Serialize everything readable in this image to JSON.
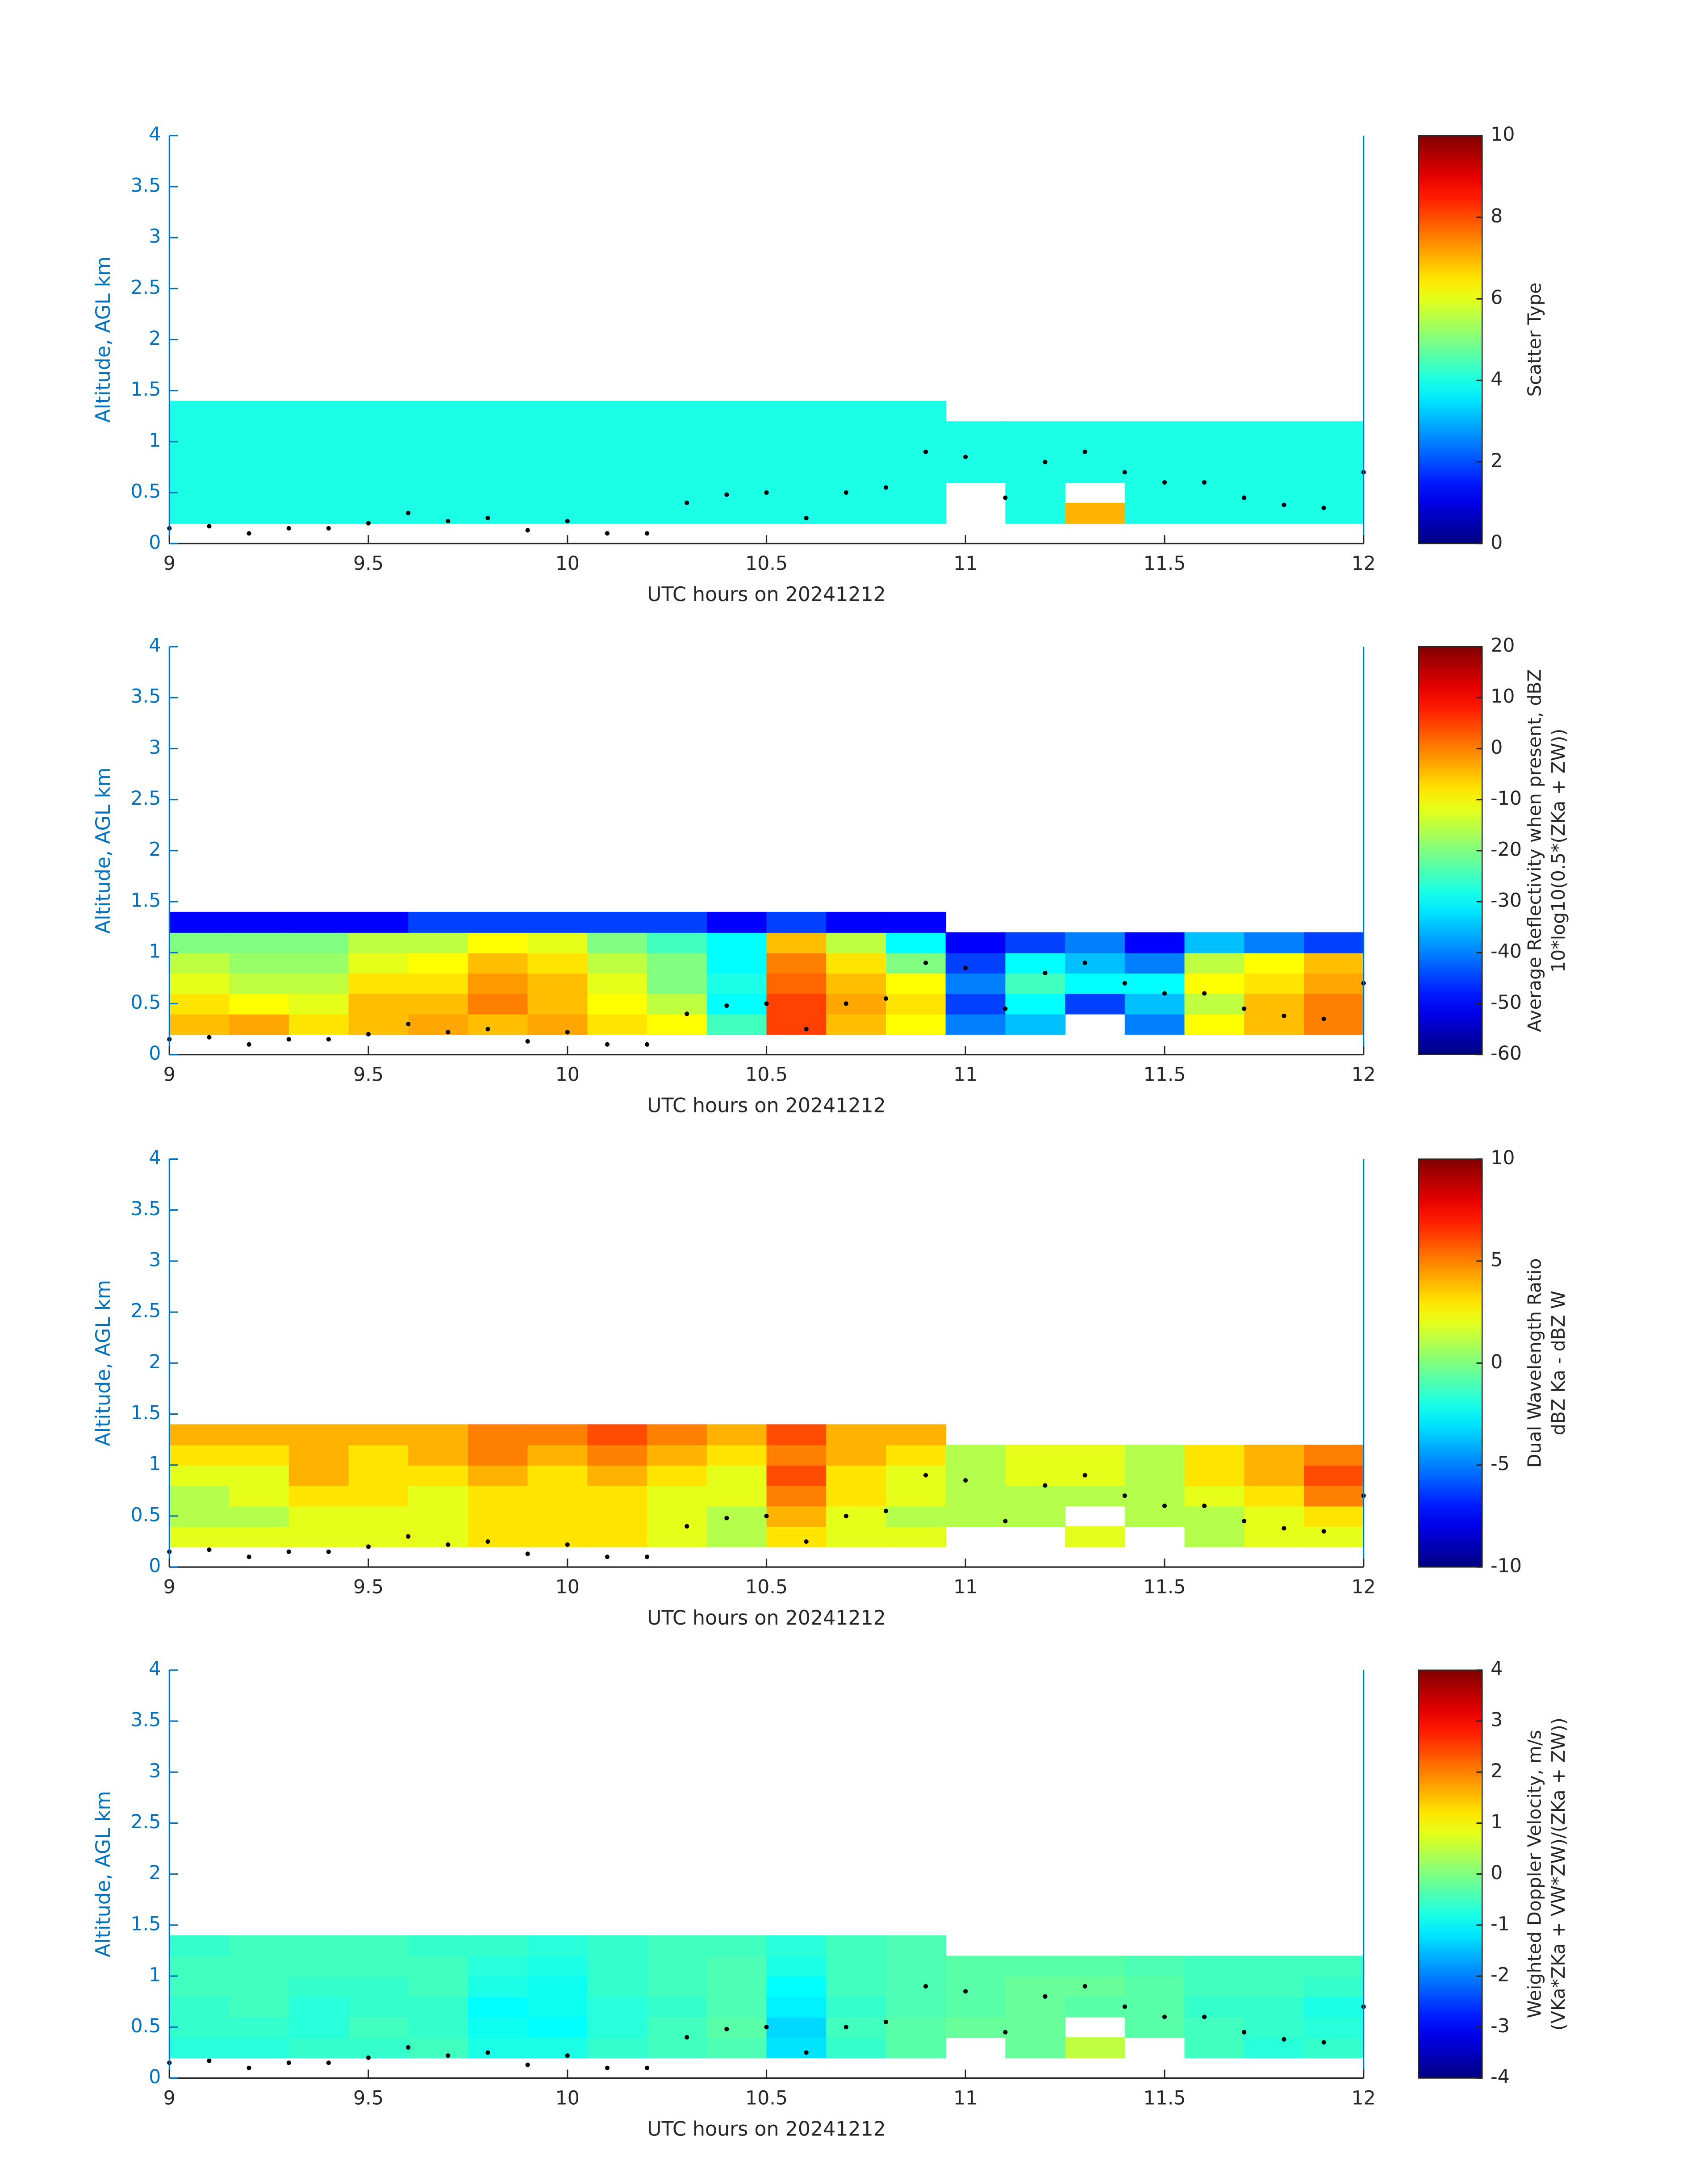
{
  "chart_data": [
    {
      "type": "heatmap",
      "xlabel": "UTC hours on 20241212",
      "ylabel": "Altitude, AGL km",
      "xlim": [
        9,
        12
      ],
      "xticks": [
        9,
        9.5,
        10,
        10.5,
        11,
        11.5,
        12
      ],
      "ylim": [
        0,
        4
      ],
      "yticks": [
        0,
        0.5,
        1,
        1.5,
        2,
        2.5,
        3,
        3.5,
        4
      ],
      "axis_color": "#0072bd",
      "colormap": "jet",
      "clim": [
        0,
        10
      ],
      "cticks": [
        0,
        2,
        4,
        6,
        8,
        10
      ],
      "colorbar_label": [
        "Scatter Type"
      ],
      "x_edges": [
        9,
        9.15,
        9.3,
        9.45,
        9.6,
        9.75,
        9.9,
        10.05,
        10.2,
        10.35,
        10.5,
        10.65,
        10.8,
        10.95,
        11.1,
        11.25,
        11.4,
        11.55,
        11.7,
        11.85,
        12
      ],
      "y_edges": [
        0.2,
        0.4,
        0.6,
        0.8,
        1.0,
        1.2,
        1.4
      ],
      "z": [
        [
          4,
          4,
          4,
          4,
          4,
          4,
          4,
          4,
          4,
          4,
          4,
          4,
          4,
          null,
          4,
          7,
          4,
          4,
          4,
          4
        ],
        [
          4,
          4,
          4,
          4,
          4,
          4,
          4,
          4,
          4,
          4,
          4,
          4,
          4,
          null,
          4,
          null,
          4,
          4,
          4,
          4
        ],
        [
          4,
          4,
          4,
          4,
          4,
          4,
          4,
          4,
          4,
          4,
          4,
          4,
          4,
          4,
          4,
          4,
          4,
          4,
          4,
          4
        ],
        [
          4,
          4,
          4,
          4,
          4,
          4,
          4,
          4,
          4,
          4,
          4,
          4,
          4,
          4,
          4,
          4,
          4,
          4,
          4,
          4
        ],
        [
          4,
          4,
          4,
          4,
          4,
          4,
          4,
          4,
          4,
          4,
          4,
          4,
          4,
          4,
          4,
          4,
          4,
          4,
          4,
          4
        ],
        [
          4,
          4,
          4,
          4,
          4,
          4,
          4,
          4,
          4,
          4,
          4,
          4,
          4,
          null,
          null,
          null,
          null,
          null,
          null,
          null
        ]
      ],
      "points": {
        "color": "#000000",
        "x": [
          9.0,
          9.1,
          9.2,
          9.3,
          9.4,
          9.5,
          9.6,
          9.7,
          9.8,
          9.9,
          10.0,
          10.1,
          10.2,
          10.3,
          10.4,
          10.5,
          10.6,
          10.7,
          10.8,
          10.9,
          11.0,
          11.1,
          11.2,
          11.3,
          11.4,
          11.5,
          11.6,
          11.7,
          11.8,
          11.9,
          12.0
        ],
        "y": [
          0.15,
          0.17,
          0.1,
          0.15,
          0.15,
          0.2,
          0.3,
          0.22,
          0.25,
          0.13,
          0.22,
          0.1,
          0.1,
          0.4,
          0.48,
          0.5,
          0.25,
          0.5,
          0.55,
          0.9,
          0.85,
          0.45,
          0.8,
          0.9,
          0.7,
          0.6,
          0.6,
          0.45,
          0.38,
          0.35,
          0.7
        ]
      }
    },
    {
      "type": "heatmap",
      "xlabel": "UTC hours on 20241212",
      "ylabel": "Altitude, AGL km",
      "xlim": [
        9,
        12
      ],
      "xticks": [
        9,
        9.5,
        10,
        10.5,
        11,
        11.5,
        12
      ],
      "ylim": [
        0,
        4
      ],
      "yticks": [
        0,
        0.5,
        1,
        1.5,
        2,
        2.5,
        3,
        3.5,
        4
      ],
      "axis_color": "#0072bd",
      "colormap": "jet",
      "clim": [
        -60,
        20
      ],
      "cticks": [
        -60,
        -50,
        -40,
        -30,
        -20,
        -10,
        0,
        10,
        20
      ],
      "colorbar_label": [
        "Average Reflectivity when present, dBZ",
        "10*log10(0.5*(ZKa + ZW))"
      ],
      "x_edges": [
        9,
        9.15,
        9.3,
        9.45,
        9.6,
        9.75,
        9.9,
        10.05,
        10.2,
        10.35,
        10.5,
        10.65,
        10.8,
        10.95,
        11.1,
        11.25,
        11.4,
        11.55,
        11.7,
        11.85,
        12
      ],
      "y_edges": [
        0.2,
        0.4,
        0.6,
        0.8,
        1.0,
        1.2,
        1.4
      ],
      "z": [
        [
          -5,
          -3,
          -8,
          -5,
          -3,
          -5,
          -3,
          -8,
          -10,
          -25,
          5,
          -5,
          -10,
          -40,
          -35,
          null,
          -40,
          -10,
          -5,
          0
        ],
        [
          -8,
          -10,
          -12,
          -5,
          -5,
          0,
          -5,
          -10,
          -15,
          -30,
          5,
          -3,
          -8,
          -45,
          -30,
          -45,
          -35,
          -15,
          -5,
          0
        ],
        [
          -12,
          -15,
          -15,
          -8,
          -8,
          -2,
          -5,
          -12,
          -20,
          -28,
          2,
          -5,
          -10,
          -40,
          -25,
          -30,
          -30,
          -10,
          -8,
          -3
        ],
        [
          -15,
          -18,
          -18,
          -12,
          -10,
          -5,
          -8,
          -15,
          -20,
          -30,
          0,
          -8,
          -20,
          -45,
          -30,
          -35,
          -40,
          -15,
          -10,
          -5
        ],
        [
          -20,
          -20,
          -20,
          -15,
          -15,
          -10,
          -12,
          -20,
          -25,
          -30,
          -5,
          -15,
          -30,
          -50,
          -45,
          -40,
          -50,
          -35,
          -40,
          -45
        ],
        [
          -50,
          -50,
          -50,
          -50,
          -45,
          -45,
          -45,
          -45,
          -45,
          -50,
          -45,
          -50,
          -50,
          null,
          null,
          null,
          null,
          null,
          null,
          null
        ]
      ],
      "points": {
        "color": "#000000",
        "x": [
          9.0,
          9.1,
          9.2,
          9.3,
          9.4,
          9.5,
          9.6,
          9.7,
          9.8,
          9.9,
          10.0,
          10.1,
          10.2,
          10.3,
          10.4,
          10.5,
          10.6,
          10.7,
          10.8,
          10.9,
          11.0,
          11.1,
          11.2,
          11.3,
          11.4,
          11.5,
          11.6,
          11.7,
          11.8,
          11.9,
          12.0
        ],
        "y": [
          0.15,
          0.17,
          0.1,
          0.15,
          0.15,
          0.2,
          0.3,
          0.22,
          0.25,
          0.13,
          0.22,
          0.1,
          0.1,
          0.4,
          0.48,
          0.5,
          0.25,
          0.5,
          0.55,
          0.9,
          0.85,
          0.45,
          0.8,
          0.9,
          0.7,
          0.6,
          0.6,
          0.45,
          0.38,
          0.35,
          0.7
        ]
      }
    },
    {
      "type": "heatmap",
      "xlabel": "UTC hours on 20241212",
      "ylabel": "Altitude, AGL km",
      "xlim": [
        9,
        12
      ],
      "xticks": [
        9,
        9.5,
        10,
        10.5,
        11,
        11.5,
        12
      ],
      "ylim": [
        0,
        4
      ],
      "yticks": [
        0,
        0.5,
        1,
        1.5,
        2,
        2.5,
        3,
        3.5,
        4
      ],
      "axis_color": "#0072bd",
      "colormap": "jet",
      "clim": [
        -10,
        10
      ],
      "cticks": [
        -10,
        -5,
        0,
        5,
        10
      ],
      "colorbar_label": [
        "Dual Wavelength Ratio",
        "dBZ Ka - dBZ W"
      ],
      "x_edges": [
        9,
        9.15,
        9.3,
        9.45,
        9.6,
        9.75,
        9.9,
        10.05,
        10.2,
        10.35,
        10.5,
        10.65,
        10.8,
        10.95,
        11.1,
        11.25,
        11.4,
        11.55,
        11.7,
        11.85,
        12
      ],
      "y_edges": [
        0.2,
        0.4,
        0.6,
        0.8,
        1.0,
        1.2,
        1.4
      ],
      "z": [
        [
          2,
          2,
          2,
          2,
          2,
          3,
          3,
          3,
          2,
          1,
          3,
          2,
          2,
          null,
          null,
          2,
          null,
          1,
          2,
          2
        ],
        [
          1,
          1,
          2,
          2,
          2,
          3,
          3,
          3,
          2,
          1,
          4,
          2,
          1,
          1,
          1,
          null,
          1,
          1,
          2,
          3
        ],
        [
          1,
          2,
          3,
          3,
          2,
          3,
          3,
          3,
          2,
          2,
          5,
          3,
          2,
          1,
          1,
          1,
          1,
          2,
          3,
          5
        ],
        [
          2,
          2,
          4,
          3,
          3,
          4,
          3,
          4,
          3,
          2,
          6,
          3,
          2,
          1,
          2,
          2,
          1,
          3,
          4,
          6
        ],
        [
          3,
          3,
          4,
          3,
          4,
          5,
          4,
          5,
          4,
          3,
          5,
          4,
          3,
          1,
          2,
          2,
          1,
          3,
          4,
          5
        ],
        [
          4,
          4,
          4,
          4,
          4,
          5,
          5,
          6,
          5,
          4,
          6,
          4,
          4,
          null,
          null,
          null,
          null,
          null,
          null,
          null
        ]
      ],
      "points": {
        "color": "#000000",
        "x": [
          9.0,
          9.1,
          9.2,
          9.3,
          9.4,
          9.5,
          9.6,
          9.7,
          9.8,
          9.9,
          10.0,
          10.1,
          10.2,
          10.3,
          10.4,
          10.5,
          10.6,
          10.7,
          10.8,
          10.9,
          11.0,
          11.1,
          11.2,
          11.3,
          11.4,
          11.5,
          11.6,
          11.7,
          11.8,
          11.9,
          12.0
        ],
        "y": [
          0.15,
          0.17,
          0.1,
          0.15,
          0.15,
          0.2,
          0.3,
          0.22,
          0.25,
          0.13,
          0.22,
          0.1,
          0.1,
          0.4,
          0.48,
          0.5,
          0.25,
          0.5,
          0.55,
          0.9,
          0.85,
          0.45,
          0.8,
          0.9,
          0.7,
          0.6,
          0.6,
          0.45,
          0.38,
          0.35,
          0.7
        ]
      }
    },
    {
      "type": "heatmap",
      "xlabel": "UTC hours on 20241212",
      "ylabel": "Altitude, AGL km",
      "xlim": [
        9,
        12
      ],
      "xticks": [
        9,
        9.5,
        10,
        10.5,
        11,
        11.5,
        12
      ],
      "ylim": [
        0,
        4
      ],
      "yticks": [
        0,
        0.5,
        1,
        1.5,
        2,
        2.5,
        3,
        3.5,
        4
      ],
      "axis_color": "#0072bd",
      "colormap": "jet",
      "clim": [
        -4,
        4
      ],
      "cticks": [
        -4,
        -3,
        -2,
        -1,
        0,
        1,
        2,
        3,
        4
      ],
      "colorbar_label": [
        "Weighted Doppler Velocity, m/s",
        "(VKa*ZKa + VW*ZW)/(ZKa + ZW))"
      ],
      "x_edges": [
        9,
        9.15,
        9.3,
        9.45,
        9.6,
        9.75,
        9.9,
        10.05,
        10.2,
        10.35,
        10.5,
        10.65,
        10.8,
        10.95,
        11.1,
        11.25,
        11.4,
        11.55,
        11.7,
        11.85,
        12
      ],
      "y_edges": [
        0.2,
        0.4,
        0.6,
        0.8,
        1.0,
        1.2,
        1.4
      ],
      "z": [
        [
          -0.7,
          -0.7,
          -0.6,
          -0.6,
          -0.5,
          -0.8,
          -0.8,
          -0.6,
          -0.5,
          -0.4,
          -1.2,
          -0.6,
          -0.3,
          null,
          -0.2,
          0.5,
          null,
          -0.5,
          -0.7,
          -0.6
        ],
        [
          -0.6,
          -0.6,
          -0.7,
          -0.5,
          -0.6,
          -0.9,
          -1.0,
          -0.7,
          -0.5,
          -0.3,
          -1.3,
          -0.5,
          -0.3,
          -0.2,
          -0.2,
          null,
          -0.3,
          -0.5,
          -0.6,
          -0.7
        ],
        [
          -0.6,
          -0.5,
          -0.7,
          -0.6,
          -0.6,
          -1.0,
          -0.9,
          -0.7,
          -0.6,
          -0.4,
          -1.1,
          -0.6,
          -0.4,
          -0.3,
          -0.2,
          -0.3,
          -0.3,
          -0.6,
          -0.6,
          -0.8
        ],
        [
          -0.5,
          -0.5,
          -0.6,
          -0.6,
          -0.5,
          -0.8,
          -0.9,
          -0.6,
          -0.5,
          -0.4,
          -1.0,
          -0.5,
          -0.4,
          -0.3,
          -0.2,
          -0.2,
          -0.3,
          -0.5,
          -0.5,
          -0.6
        ],
        [
          -0.5,
          -0.5,
          -0.5,
          -0.5,
          -0.5,
          -0.7,
          -0.8,
          -0.6,
          -0.5,
          -0.4,
          -0.8,
          -0.5,
          -0.4,
          -0.3,
          -0.3,
          -0.3,
          -0.4,
          -0.5,
          -0.5,
          -0.5
        ],
        [
          -0.6,
          -0.5,
          -0.5,
          -0.5,
          -0.6,
          -0.6,
          -0.7,
          -0.6,
          -0.5,
          -0.5,
          -0.7,
          -0.5,
          -0.4,
          null,
          null,
          null,
          null,
          null,
          null,
          null
        ]
      ],
      "points": {
        "color": "#000000",
        "x": [
          9.0,
          9.1,
          9.2,
          9.3,
          9.4,
          9.5,
          9.6,
          9.7,
          9.8,
          9.9,
          10.0,
          10.1,
          10.2,
          10.3,
          10.4,
          10.5,
          10.6,
          10.7,
          10.8,
          10.9,
          11.0,
          11.1,
          11.2,
          11.3,
          11.4,
          11.5,
          11.6,
          11.7,
          11.8,
          11.9,
          12.0
        ],
        "y": [
          0.15,
          0.17,
          0.1,
          0.15,
          0.15,
          0.2,
          0.3,
          0.22,
          0.25,
          0.13,
          0.22,
          0.1,
          0.1,
          0.4,
          0.48,
          0.5,
          0.25,
          0.5,
          0.55,
          0.9,
          0.85,
          0.45,
          0.8,
          0.9,
          0.7,
          0.6,
          0.6,
          0.45,
          0.38,
          0.35,
          0.7
        ]
      }
    }
  ]
}
